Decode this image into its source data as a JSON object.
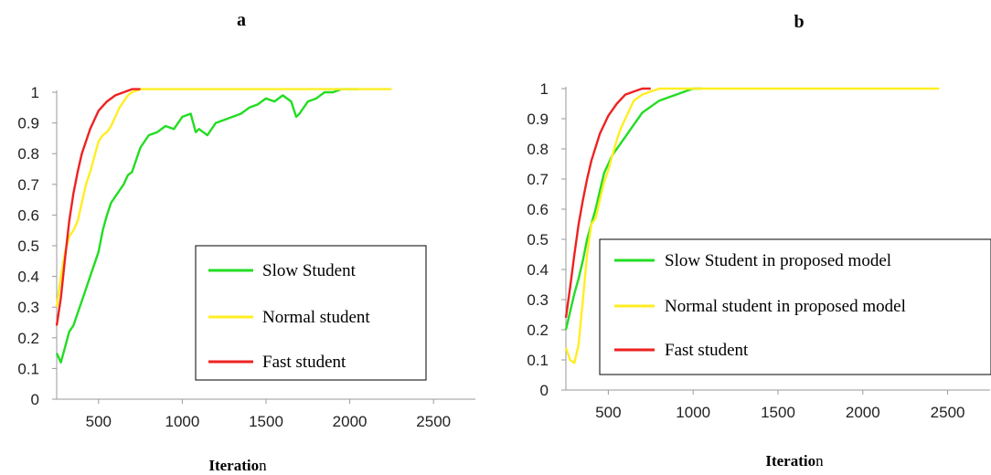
{
  "chart_data": [
    {
      "panel_label": "a",
      "type": "line",
      "xlabel_bold": "Iteratio",
      "xlabel_rest": "n",
      "ylabel": "",
      "xlim": [
        250,
        2750
      ],
      "ylim": [
        0,
        1
      ],
      "x_ticks": [
        500,
        1000,
        1500,
        2000,
        2500
      ],
      "y_ticks": [
        0,
        0.1,
        0.2,
        0.3,
        0.4,
        0.5,
        0.6,
        0.7,
        0.8,
        0.9,
        1
      ],
      "legend_position": "right",
      "series": [
        {
          "name": "Slow Student",
          "color": "#22dd22",
          "x": [
            250,
            275,
            300,
            325,
            350,
            375,
            400,
            425,
            450,
            475,
            500,
            525,
            550,
            575,
            600,
            625,
            650,
            675,
            700,
            750,
            800,
            850,
            900,
            950,
            1000,
            1050,
            1080,
            1100,
            1150,
            1200,
            1250,
            1300,
            1350,
            1400,
            1450,
            1500,
            1550,
            1600,
            1650,
            1680,
            1700,
            1750,
            1800,
            1850,
            1900,
            1950,
            2000,
            2050
          ],
          "y": [
            0.15,
            0.12,
            0.17,
            0.22,
            0.24,
            0.28,
            0.32,
            0.36,
            0.4,
            0.44,
            0.48,
            0.55,
            0.6,
            0.64,
            0.66,
            0.68,
            0.7,
            0.73,
            0.74,
            0.82,
            0.86,
            0.87,
            0.89,
            0.88,
            0.92,
            0.93,
            0.87,
            0.88,
            0.86,
            0.9,
            0.91,
            0.92,
            0.93,
            0.95,
            0.96,
            0.98,
            0.97,
            0.99,
            0.97,
            0.92,
            0.93,
            0.97,
            0.98,
            1.0,
            1.0,
            1.01,
            1.01,
            1.01
          ]
        },
        {
          "name": "Normal student",
          "color": "#ffee22",
          "x": [
            250,
            275,
            300,
            325,
            350,
            375,
            400,
            425,
            450,
            475,
            500,
            525,
            550,
            575,
            600,
            625,
            650,
            675,
            700,
            750,
            800,
            2250
          ],
          "y": [
            0.3,
            0.4,
            0.48,
            0.53,
            0.55,
            0.58,
            0.64,
            0.7,
            0.74,
            0.79,
            0.84,
            0.86,
            0.87,
            0.89,
            0.92,
            0.95,
            0.97,
            0.99,
            1.0,
            1.01,
            1.01,
            1.01
          ]
        },
        {
          "name": "Fast student",
          "color": "#ee2222",
          "x": [
            250,
            275,
            300,
            325,
            350,
            375,
            400,
            450,
            500,
            550,
            600,
            650,
            700,
            750
          ],
          "y": [
            0.24,
            0.33,
            0.46,
            0.58,
            0.67,
            0.74,
            0.8,
            0.88,
            0.94,
            0.97,
            0.99,
            1.0,
            1.01,
            1.01
          ]
        }
      ]
    },
    {
      "panel_label": "b",
      "type": "line",
      "xlabel_bold": "Iteratio",
      "xlabel_rest": "n",
      "ylabel": "",
      "xlim": [
        250,
        2750
      ],
      "ylim": [
        0,
        1
      ],
      "x_ticks": [
        500,
        1000,
        1500,
        2000,
        2500
      ],
      "y_ticks": [
        0,
        0.1,
        0.2,
        0.3,
        0.4,
        0.5,
        0.6,
        0.7,
        0.8,
        0.9,
        1
      ],
      "legend_position": "right",
      "series": [
        {
          "name": "Slow Student in proposed model",
          "color": "#22dd22",
          "x": [
            250,
            275,
            300,
            325,
            350,
            375,
            400,
            425,
            450,
            475,
            500,
            525,
            550,
            575,
            600,
            625,
            650,
            675,
            700,
            750,
            800,
            850,
            900,
            950,
            1000,
            1050
          ],
          "y": [
            0.2,
            0.26,
            0.32,
            0.37,
            0.43,
            0.5,
            0.55,
            0.6,
            0.66,
            0.72,
            0.75,
            0.78,
            0.8,
            0.82,
            0.84,
            0.86,
            0.88,
            0.9,
            0.92,
            0.94,
            0.96,
            0.97,
            0.98,
            0.99,
            1.0,
            1.0
          ]
        },
        {
          "name": "Normal student in proposed model",
          "color": "#ffee22",
          "x": [
            250,
            275,
            300,
            325,
            350,
            375,
            400,
            425,
            450,
            475,
            500,
            525,
            550,
            575,
            600,
            625,
            650,
            675,
            700,
            750,
            800,
            850,
            2450
          ],
          "y": [
            0.14,
            0.1,
            0.09,
            0.15,
            0.3,
            0.45,
            0.55,
            0.57,
            0.63,
            0.69,
            0.73,
            0.78,
            0.83,
            0.87,
            0.9,
            0.93,
            0.96,
            0.97,
            0.98,
            0.99,
            1.0,
            1.0,
            1.0
          ]
        },
        {
          "name": "Fast student",
          "color": "#ee2222",
          "x": [
            250,
            275,
            300,
            325,
            350,
            375,
            400,
            450,
            500,
            550,
            600,
            650,
            700,
            750
          ],
          "y": [
            0.24,
            0.34,
            0.45,
            0.55,
            0.63,
            0.7,
            0.76,
            0.85,
            0.91,
            0.95,
            0.98,
            0.99,
            1.0,
            1.0
          ]
        }
      ]
    }
  ]
}
